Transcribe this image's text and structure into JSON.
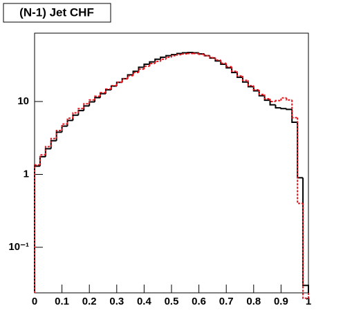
{
  "chart_data": {
    "type": "histogram",
    "title": "(N-1) Jet CHF",
    "bins": [
      0,
      0.02,
      0.04,
      0.06,
      0.08,
      0.1,
      0.12,
      0.14,
      0.16,
      0.18,
      0.2,
      0.22,
      0.24,
      0.26,
      0.28,
      0.3,
      0.32,
      0.34,
      0.36,
      0.38,
      0.4,
      0.42,
      0.44,
      0.46,
      0.48,
      0.5,
      0.52,
      0.54,
      0.56,
      0.58,
      0.6,
      0.62,
      0.64,
      0.66,
      0.68,
      0.7,
      0.72,
      0.74,
      0.76,
      0.78,
      0.8,
      0.82,
      0.84,
      0.86,
      0.88,
      0.9,
      0.92,
      0.94,
      0.96,
      0.98,
      1
    ],
    "series": [
      {
        "color": "#000000",
        "line_style": "solid",
        "values": [
          1.3,
          1.75,
          2.25,
          2.9,
          3.8,
          4.6,
          5.5,
          6.5,
          7.5,
          8.7,
          9.9,
          11.3,
          12.8,
          14.5,
          16.3,
          18.3,
          20.6,
          23.2,
          26,
          29.5,
          32.5,
          35,
          38,
          40.5,
          42.5,
          44,
          45.5,
          46.5,
          47,
          46.5,
          45,
          42.5,
          39.5,
          36,
          32.5,
          29,
          25,
          21.5,
          18.5,
          16,
          14,
          12,
          10.4,
          9,
          8.2,
          8,
          7.8,
          5.2,
          0.9,
          0.03
        ]
      },
      {
        "color": "#e8141c",
        "line_style": "dashed",
        "values": [
          1.35,
          1.85,
          2.4,
          3.1,
          4.0,
          4.9,
          5.9,
          7.0,
          8.0,
          9.3,
          10.5,
          11.8,
          13.2,
          14.8,
          16.5,
          18.4,
          20.4,
          22.6,
          25,
          27.8,
          30.5,
          33.2,
          35.5,
          38,
          40.5,
          42.5,
          44,
          45,
          45.5,
          45.5,
          44.5,
          42.5,
          40,
          37,
          33.5,
          30,
          26,
          22.5,
          19.5,
          16.5,
          14.5,
          12.5,
          10.9,
          10,
          10.3,
          11.2,
          10.5,
          6.0,
          0.4,
          0.02
        ]
      }
    ],
    "xlim": [
      0,
      1
    ],
    "xticks": [
      0,
      0.1,
      0.2,
      0.3,
      0.4,
      0.5,
      0.6,
      0.7,
      0.8,
      0.9,
      1
    ],
    "ylim": [
      0.0237,
      86.7
    ],
    "log_y": true,
    "yticks": [
      {
        "value": 0.1,
        "label": "10⁻¹"
      },
      1,
      10
    ]
  }
}
